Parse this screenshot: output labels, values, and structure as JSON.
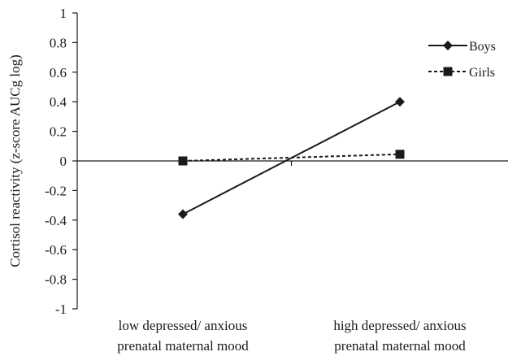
{
  "chart_data": {
    "type": "line",
    "title": "",
    "xlabel": "",
    "ylabel": "Cortisol reactivity (z-score AUCg log)",
    "ylim": [
      -1,
      1
    ],
    "y_ticks": [
      "1",
      "0.8",
      "0.6",
      "0.4",
      "0.2",
      "0",
      "-0.2",
      "-0.4",
      "-0.6",
      "-0.8",
      "-1"
    ],
    "categories": [
      [
        "low depressed/ anxious",
        "prenatal maternal mood"
      ],
      [
        "high depressed/ anxious",
        "prenatal maternal mood"
      ]
    ],
    "series": [
      {
        "name": "Boys",
        "values": [
          -0.36,
          0.4
        ],
        "marker": "diamond",
        "line_style": "solid",
        "color": "#1a1a1a"
      },
      {
        "name": "Girls",
        "values": [
          0.0,
          0.045
        ],
        "marker": "square",
        "line_style": "dashed",
        "color": "#1a1a1a"
      }
    ],
    "legend_position": "top-right",
    "grid": false
  }
}
